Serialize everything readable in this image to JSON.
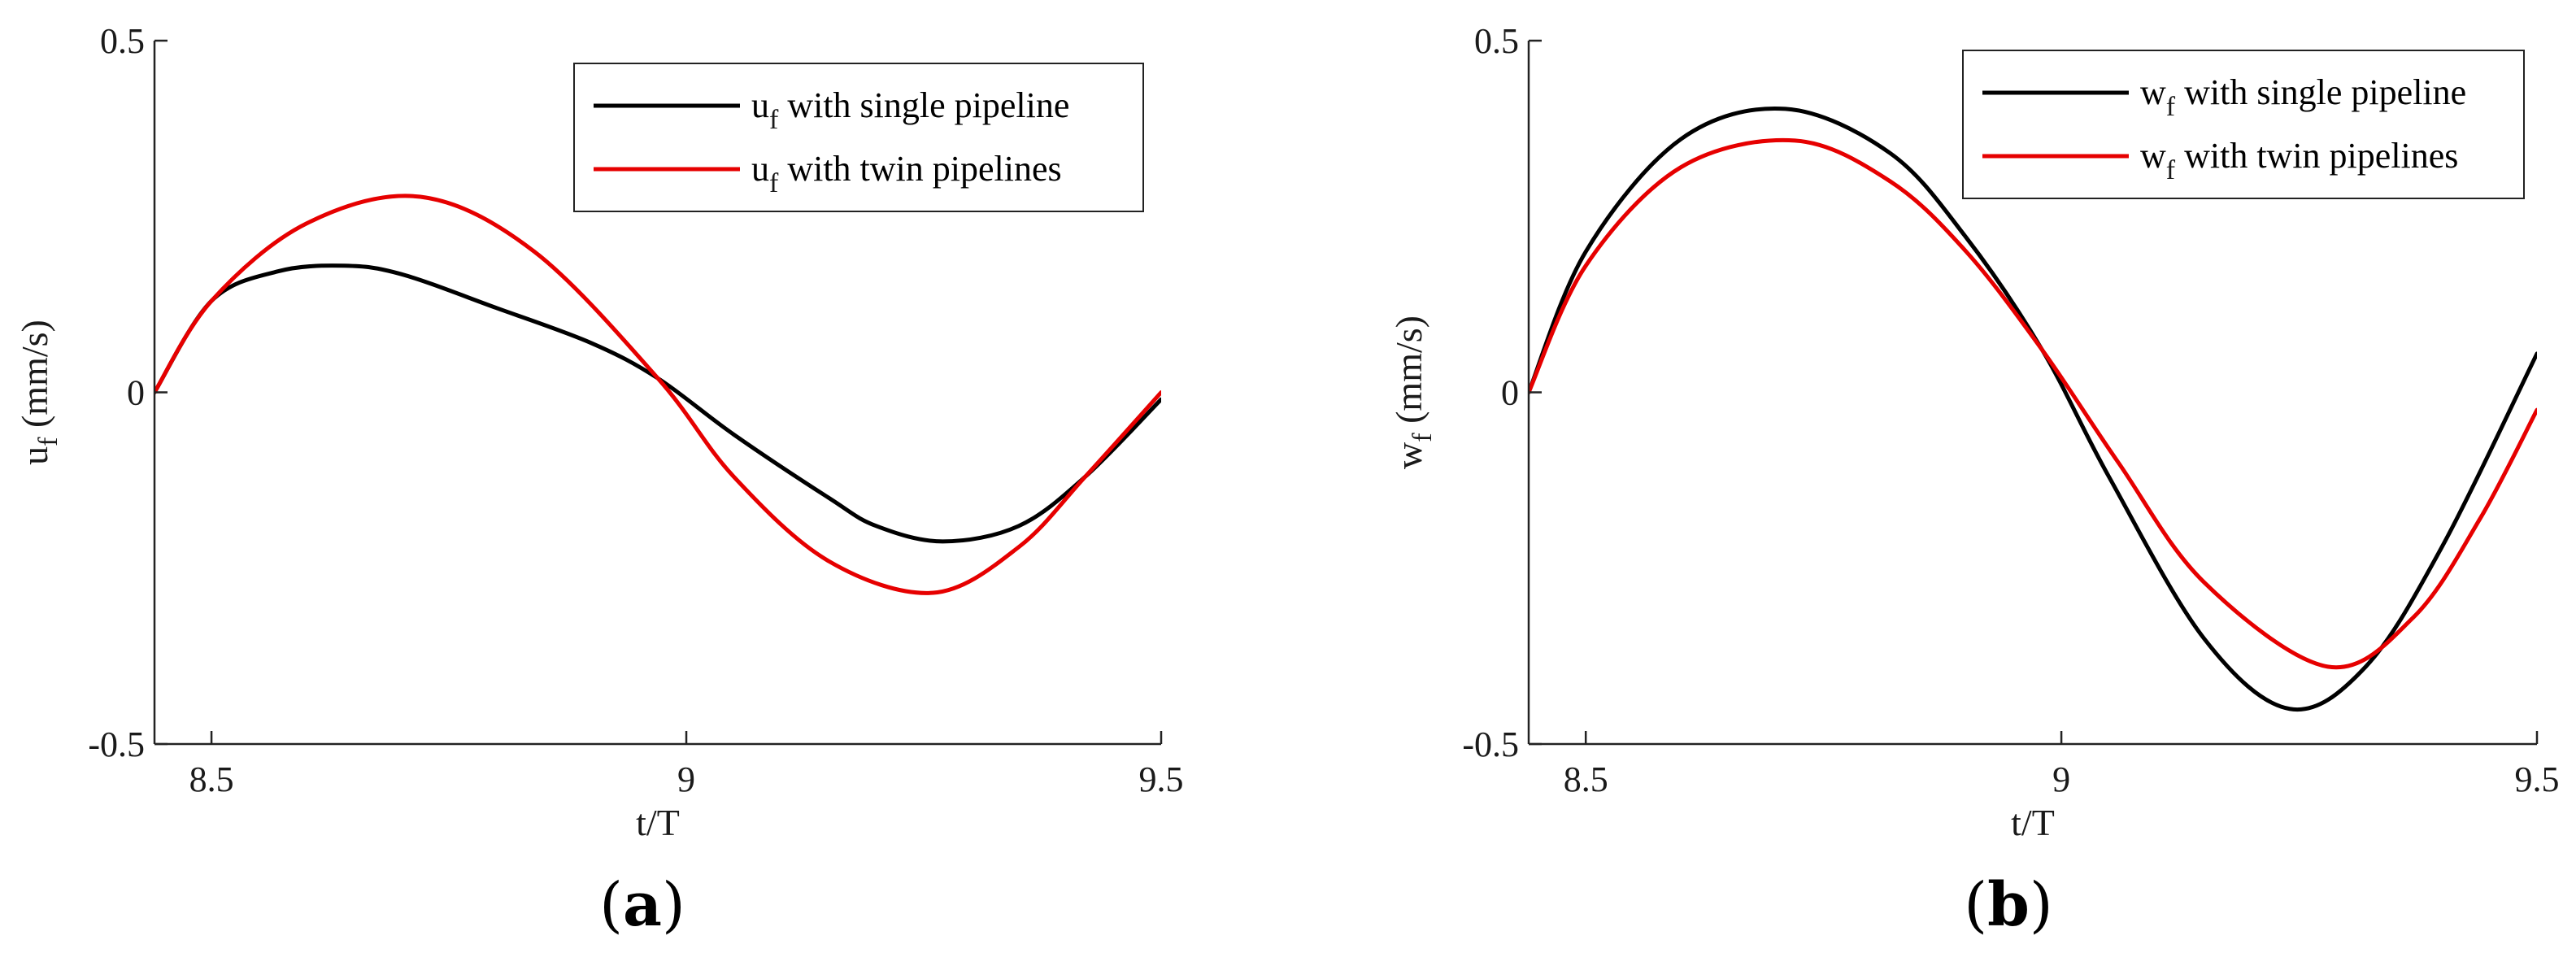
{
  "chart_data": [
    {
      "type": "line",
      "panel_label": {
        "open": "(",
        "letter": "a",
        "close": ")"
      },
      "xlabel": "t/T",
      "ylabel": {
        "symbol": "u",
        "subscript": "f",
        "unit": " (mm/s)"
      },
      "xlim": [
        8.44,
        9.5
      ],
      "ylim": [
        -0.5,
        0.5
      ],
      "xticks": [
        {
          "value": 8.5,
          "label": "8.5"
        },
        {
          "value": 9,
          "label": "9"
        },
        {
          "value": 9.5,
          "label": "9.5"
        }
      ],
      "yticks": [
        {
          "value": -0.5,
          "label": "-0.5"
        },
        {
          "value": 0,
          "label": "0"
        },
        {
          "value": 0.5,
          "label": "0.5"
        }
      ],
      "legend_position": "top-right",
      "series": [
        {
          "symbol": "u",
          "subscript": "f",
          "rest": " with single pipeline",
          "color": "#000000",
          "x": [
            8.44,
            8.5,
            8.57,
            8.64,
            8.7,
            8.8,
            8.9,
            8.97,
            9.05,
            9.15,
            9.2,
            9.27,
            9.35,
            9.42,
            9.5
          ],
          "y": [
            0.0,
            0.13,
            0.172,
            0.18,
            0.168,
            0.12,
            0.07,
            0.02,
            -0.06,
            -0.15,
            -0.19,
            -0.212,
            -0.19,
            -0.12,
            -0.01
          ]
        },
        {
          "symbol": "u",
          "subscript": "f",
          "rest": " with twin pipelines",
          "color": "#e60000",
          "x": [
            8.44,
            8.5,
            8.6,
            8.72,
            8.84,
            8.97,
            9.05,
            9.15,
            9.26,
            9.35,
            9.42,
            9.5
          ],
          "y": [
            0.0,
            0.13,
            0.24,
            0.278,
            0.2,
            0.02,
            -0.12,
            -0.24,
            -0.285,
            -0.22,
            -0.12,
            0.0
          ]
        }
      ]
    },
    {
      "type": "line",
      "panel_label": {
        "open": "(",
        "letter": "b",
        "close": ")"
      },
      "xlabel": "t/T",
      "ylabel": {
        "symbol": "w",
        "subscript": "f",
        "unit": " (mm/s)"
      },
      "xlim": [
        8.44,
        9.5
      ],
      "ylim": [
        -0.5,
        0.5
      ],
      "xticks": [
        {
          "value": 8.5,
          "label": "8.5"
        },
        {
          "value": 9,
          "label": "9"
        },
        {
          "value": 9.5,
          "label": "9.5"
        }
      ],
      "yticks": [
        {
          "value": -0.5,
          "label": "-0.5"
        },
        {
          "value": 0,
          "label": "0"
        },
        {
          "value": 0.5,
          "label": "0.5"
        }
      ],
      "legend_position": "top-right",
      "series": [
        {
          "symbol": "w",
          "subscript": "f",
          "rest": " with single pipeline",
          "color": "#000000",
          "x": [
            8.44,
            8.5,
            8.6,
            8.71,
            8.82,
            8.9,
            8.98,
            9.05,
            9.15,
            9.24,
            9.32,
            9.4,
            9.5
          ],
          "y": [
            0.0,
            0.2,
            0.36,
            0.403,
            0.34,
            0.22,
            0.06,
            -0.12,
            -0.35,
            -0.45,
            -0.39,
            -0.22,
            0.055
          ]
        },
        {
          "symbol": "w",
          "subscript": "f",
          "rest": " with twin pipelines",
          "color": "#e60000",
          "x": [
            8.44,
            8.5,
            8.6,
            8.72,
            8.82,
            8.9,
            8.98,
            9.06,
            9.15,
            9.28,
            9.37,
            9.44,
            9.5
          ],
          "y": [
            0.0,
            0.18,
            0.32,
            0.358,
            0.3,
            0.2,
            0.06,
            -0.1,
            -0.27,
            -0.39,
            -0.32,
            -0.18,
            -0.025
          ]
        }
      ]
    }
  ]
}
